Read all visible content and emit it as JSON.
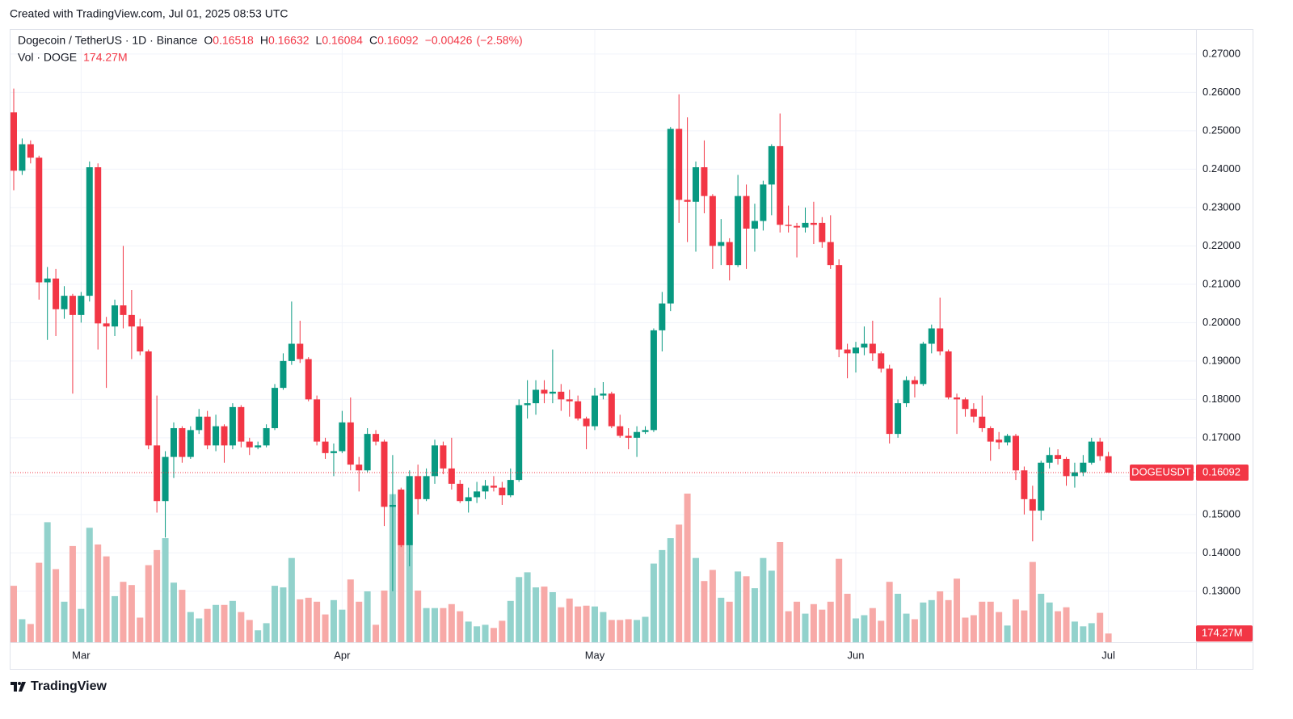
{
  "header": "Created with TradingView.com, Jul 01, 2025 08:53 UTC",
  "footer": "TradingView",
  "chart_data": {
    "type": "candlestick",
    "title": "Dogecoin / TetherUS · 1D · Binance",
    "symbol": "DOGEUSDT",
    "legend_labels": [
      "O",
      "H",
      "L",
      "C"
    ],
    "change": "−0.00426",
    "change_percent": "(−2.58%)",
    "volume_title": "Vol · DOGE",
    "volume_label": "174.27M",
    "up_color": "#089981",
    "down_color": "#f23645",
    "volume_up_color": "#92d2cc",
    "volume_down_color": "#f7a9a7",
    "grid": true,
    "categories": [
      null,
      null,
      null,
      null,
      null,
      null,
      null,
      null,
      "Mar",
      null,
      null,
      null,
      null,
      null,
      null,
      null,
      null,
      null,
      null,
      null,
      null,
      null,
      null,
      null,
      null,
      null,
      null,
      null,
      null,
      null,
      null,
      null,
      null,
      null,
      null,
      null,
      null,
      null,
      null,
      "Apr",
      null,
      null,
      null,
      null,
      null,
      null,
      null,
      null,
      null,
      null,
      null,
      null,
      null,
      null,
      null,
      null,
      null,
      null,
      null,
      null,
      null,
      null,
      null,
      null,
      null,
      null,
      null,
      null,
      null,
      "May",
      null,
      null,
      null,
      null,
      null,
      null,
      null,
      null,
      null,
      null,
      null,
      null,
      null,
      null,
      null,
      null,
      null,
      null,
      null,
      null,
      null,
      null,
      null,
      null,
      null,
      null,
      null,
      null,
      null,
      null,
      "Jun",
      null,
      null,
      null,
      null,
      null,
      null,
      null,
      null,
      null,
      null,
      null,
      null,
      null,
      null,
      null,
      null,
      null,
      null,
      null,
      null,
      null,
      null,
      null,
      null,
      null,
      null,
      null,
      null,
      null,
      "Jul"
    ],
    "open": [
      0.2548,
      0.2396,
      0.2465,
      0.243,
      0.2105,
      0.2115,
      0.2035,
      0.207,
      0.202,
      0.207,
      0.2405,
      0.1998,
      0.199,
      0.2045,
      0.202,
      0.199,
      0.1925,
      0.168,
      0.1535,
      0.165,
      0.1725,
      0.165,
      0.172,
      0.1755,
      0.168,
      0.173,
      0.168,
      0.178,
      0.169,
      0.1675,
      0.168,
      0.1725,
      0.183,
      0.19,
      0.1945,
      0.1905,
      0.18,
      0.169,
      0.166,
      0.1665,
      0.174,
      0.163,
      0.1615,
      0.171,
      0.169,
      0.152,
      0.1565,
      0.142,
      0.16,
      0.154,
      0.16,
      0.168,
      0.162,
      0.158,
      0.1535,
      0.1545,
      0.156,
      0.1575,
      0.157,
      0.155,
      0.159,
      0.1785,
      0.179,
      0.1825,
      0.1815,
      0.182,
      0.18,
      0.1795,
      0.175,
      0.173,
      0.181,
      0.1815,
      0.173,
      0.1705,
      0.17,
      0.1715,
      0.172,
      0.198,
      0.205,
      0.2505,
      0.232,
      0.2315,
      0.2405,
      0.233,
      0.22,
      0.221,
      0.215,
      0.233,
      0.2245,
      0.2265,
      0.236,
      0.246,
      0.2255,
      0.2252,
      0.2248,
      0.226,
      0.226,
      0.221,
      0.215,
      0.193,
      0.192,
      0.1935,
      0.1945,
      0.192,
      0.188,
      0.171,
      0.179,
      0.185,
      0.184,
      0.1945,
      0.1985,
      0.1925,
      0.1805,
      0.18,
      0.1775,
      0.1755,
      0.1725,
      0.1695,
      0.1688,
      0.1705,
      0.1615,
      0.154,
      0.151,
      0.1635,
      0.1655,
      0.1645,
      0.16,
      0.161,
      0.1635,
      0.169,
      0.16518
    ],
    "high": [
      0.261,
      0.248,
      0.2475,
      0.2435,
      0.2145,
      0.214,
      0.2095,
      0.2075,
      0.208,
      0.242,
      0.2415,
      0.2015,
      0.206,
      0.22,
      0.2085,
      0.201,
      0.193,
      0.181,
      0.1665,
      0.174,
      0.173,
      0.173,
      0.1775,
      0.177,
      0.176,
      0.1735,
      0.179,
      0.1785,
      0.17,
      0.169,
      0.1735,
      0.184,
      0.192,
      0.2055,
      0.2005,
      0.191,
      0.181,
      0.17,
      0.1685,
      0.177,
      0.1805,
      0.165,
      0.1725,
      0.172,
      0.1695,
      0.1655,
      0.157,
      0.1615,
      0.163,
      0.162,
      0.1695,
      0.169,
      0.17,
      0.159,
      0.157,
      0.1585,
      0.159,
      0.16,
      0.1585,
      0.162,
      0.18,
      0.185,
      0.185,
      0.185,
      0.193,
      0.184,
      0.1825,
      0.181,
      0.1755,
      0.183,
      0.1845,
      0.182,
      0.176,
      0.1725,
      0.173,
      0.173,
      0.1985,
      0.208,
      0.251,
      0.2595,
      0.2535,
      0.242,
      0.2475,
      0.2335,
      0.227,
      0.222,
      0.2385,
      0.236,
      0.231,
      0.237,
      0.2465,
      0.2545,
      0.2305,
      0.226,
      0.23,
      0.2315,
      0.2275,
      0.228,
      0.2165,
      0.1945,
      0.195,
      0.199,
      0.2005,
      0.1925,
      0.189,
      0.18,
      0.186,
      0.186,
      0.195,
      0.1995,
      0.2065,
      0.193,
      0.1815,
      0.1805,
      0.179,
      0.181,
      0.173,
      0.1715,
      0.171,
      0.171,
      0.1625,
      0.1575,
      0.164,
      0.1675,
      0.167,
      0.165,
      0.1635,
      0.1655,
      0.17,
      0.17,
      0.16632
    ],
    "low": [
      0.2345,
      0.2385,
      0.2415,
      0.206,
      0.1955,
      0.1965,
      0.201,
      0.1815,
      0.2,
      0.2055,
      0.193,
      0.183,
      0.1965,
      0.1985,
      0.1905,
      0.1915,
      0.167,
      0.1505,
      0.144,
      0.1595,
      0.1635,
      0.1645,
      0.171,
      0.167,
      0.1665,
      0.1635,
      0.167,
      0.1675,
      0.1655,
      0.167,
      0.1675,
      0.172,
      0.1825,
      0.189,
      0.1895,
      0.1795,
      0.168,
      0.1645,
      0.16,
      0.166,
      0.1615,
      0.156,
      0.161,
      0.168,
      0.147,
      0.13,
      0.1415,
      0.1365,
      0.15,
      0.1535,
      0.158,
      0.1605,
      0.1565,
      0.153,
      0.1505,
      0.153,
      0.154,
      0.156,
      0.1525,
      0.1545,
      0.1585,
      0.175,
      0.176,
      0.179,
      0.179,
      0.177,
      0.1755,
      0.1745,
      0.167,
      0.172,
      0.18,
      0.1725,
      0.17,
      0.167,
      0.165,
      0.171,
      0.1715,
      0.1925,
      0.203,
      0.226,
      0.221,
      0.2185,
      0.2285,
      0.214,
      0.215,
      0.211,
      0.2145,
      0.214,
      0.2185,
      0.224,
      0.228,
      0.2235,
      0.2235,
      0.217,
      0.2235,
      0.2205,
      0.2195,
      0.214,
      0.191,
      0.1855,
      0.187,
      0.1915,
      0.19,
      0.187,
      0.1685,
      0.17,
      0.178,
      0.1805,
      0.1835,
      0.192,
      0.1915,
      0.18,
      0.171,
      0.1755,
      0.174,
      0.1715,
      0.164,
      0.167,
      0.168,
      0.159,
      0.15,
      0.143,
      0.1485,
      0.162,
      0.163,
      0.1575,
      0.157,
      0.16,
      0.163,
      0.164,
      0.16084
    ],
    "close": [
      0.2396,
      0.2465,
      0.243,
      0.2105,
      0.2115,
      0.2035,
      0.207,
      0.202,
      0.207,
      0.2405,
      0.1998,
      0.199,
      0.2045,
      0.202,
      0.199,
      0.1925,
      0.168,
      0.1535,
      0.165,
      0.1725,
      0.165,
      0.172,
      0.1755,
      0.168,
      0.173,
      0.168,
      0.178,
      0.169,
      0.1675,
      0.168,
      0.1725,
      0.183,
      0.19,
      0.1945,
      0.1905,
      0.18,
      0.169,
      0.166,
      0.1665,
      0.174,
      0.163,
      0.1615,
      0.171,
      0.169,
      0.152,
      0.1525,
      0.142,
      0.16,
      0.154,
      0.16,
      0.168,
      0.162,
      0.158,
      0.1535,
      0.1545,
      0.156,
      0.1575,
      0.157,
      0.155,
      0.159,
      0.1785,
      0.179,
      0.1825,
      0.1815,
      0.182,
      0.18,
      0.1795,
      0.175,
      0.173,
      0.181,
      0.1815,
      0.173,
      0.1705,
      0.17,
      0.1715,
      0.172,
      0.198,
      0.205,
      0.2505,
      0.232,
      0.2315,
      0.2405,
      0.233,
      0.22,
      0.221,
      0.215,
      0.233,
      0.2245,
      0.2265,
      0.236,
      0.246,
      0.2255,
      0.2252,
      0.2248,
      0.226,
      0.2255,
      0.221,
      0.215,
      0.193,
      0.192,
      0.1935,
      0.1945,
      0.192,
      0.188,
      0.171,
      0.179,
      0.185,
      0.184,
      0.1945,
      0.1985,
      0.1925,
      0.1805,
      0.18,
      0.1775,
      0.1755,
      0.1725,
      0.169,
      0.1688,
      0.1705,
      0.1615,
      0.154,
      0.151,
      0.1635,
      0.1655,
      0.1645,
      0.16,
      0.161,
      0.1635,
      0.169,
      0.1652,
      0.16092
    ],
    "volume": [
      1125,
      459,
      364,
      1584,
      2392,
      1457,
      808,
      1917,
      665,
      2281,
      1948,
      1711,
      919,
      1204,
      1140,
      491,
      1536,
      1837,
      2075,
      1188,
      1045,
      602,
      475,
      665,
      744,
      744,
      824,
      602,
      444,
      238,
      380,
      1125,
      1093,
      1679,
      855,
      887,
      808,
      554,
      840,
      649,
      1251,
      808,
      1014,
      348,
      1030,
      2950,
      3010,
      2960,
      1030,
      681,
      681,
      681,
      760,
      618,
      412,
      317,
      348,
      285,
      428,
      824,
      1299,
      1394,
      1093,
      1109,
      998,
      697,
      871,
      713,
      729,
      713,
      602,
      444,
      444,
      459,
      444,
      507,
      1568,
      1837,
      2075,
      2344,
      2962,
      1679,
      1220,
      1441,
      887,
      808,
      1410,
      1315,
      1077,
      1679,
      1426,
      1996,
      618,
      808,
      570,
      760,
      649,
      808,
      1663,
      966,
      475,
      539,
      681,
      428,
      1204,
      966,
      570,
      459,
      792,
      840,
      1014,
      840,
      1267,
      491,
      539,
      808,
      808,
      602,
      333,
      855,
      634,
      1600,
      966,
      792,
      618,
      697,
      412,
      317,
      380,
      586,
      174.27
    ],
    "ylim": [
      0.1167,
      0.2763
    ],
    "yticks": [
      {
        "value": 0.13,
        "label": "0.13000"
      },
      {
        "value": 0.14,
        "label": "0.14000"
      },
      {
        "value": 0.15,
        "label": "0.15000"
      },
      {
        "value": 0.16,
        "label": "0.16000"
      },
      {
        "value": 0.17,
        "label": "0.17000"
      },
      {
        "value": 0.18,
        "label": "0.18000"
      },
      {
        "value": 0.19,
        "label": "0.19000"
      },
      {
        "value": 0.2,
        "label": "0.20000"
      },
      {
        "value": 0.21,
        "label": "0.21000"
      },
      {
        "value": 0.22,
        "label": "0.22000"
      },
      {
        "value": 0.23,
        "label": "0.23000"
      },
      {
        "value": 0.24,
        "label": "0.24000"
      },
      {
        "value": 0.25,
        "label": "0.25000"
      },
      {
        "value": 0.26,
        "label": "0.26000"
      },
      {
        "value": 0.27,
        "label": "0.27000"
      }
    ]
  }
}
